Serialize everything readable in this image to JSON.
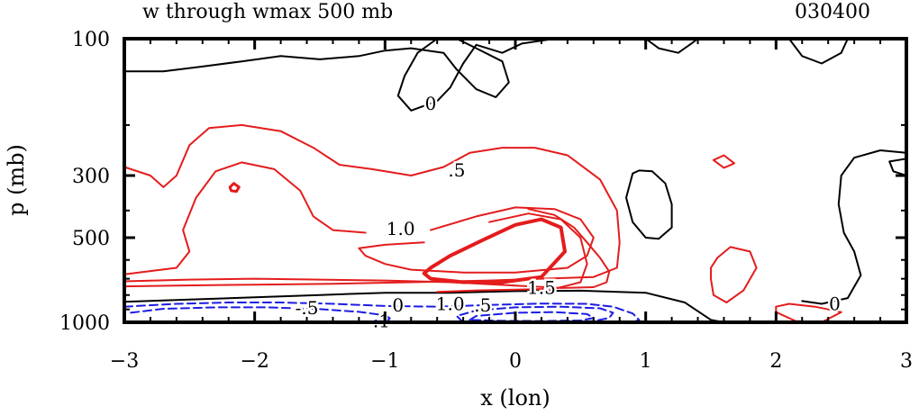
{
  "chart_data": {
    "type": "contour",
    "title": "w through wmax 500 mb",
    "time_label": "030400",
    "xlabel": "x (lon)",
    "ylabel": "p (mb)",
    "xlim": [
      -3,
      3
    ],
    "x_ticks": [
      -3,
      -2,
      -1,
      0,
      1,
      2,
      3
    ],
    "y_ticks": [
      100,
      300,
      500,
      1000
    ],
    "grid": false,
    "contour_labels": [
      {
        "text": "0",
        "x": -0.65,
        "p": 170,
        "color": "#000000"
      },
      {
        "text": ".5",
        "x": -0.45,
        "p": 290,
        "color": "#000000"
      },
      {
        "text": "1.0",
        "x": -0.88,
        "p": 470,
        "color": "#000000"
      },
      {
        "text": "1.5",
        "x": 0.2,
        "p": 760,
        "color": "#000000"
      },
      {
        "text": "1.0",
        "x": -0.5,
        "p": 870,
        "color": "#000000"
      },
      {
        "text": ".5",
        "x": -0.25,
        "p": 880,
        "color": "#000000"
      },
      {
        "text": "0",
        "x": -0.9,
        "p": 880,
        "color": "#000000"
      },
      {
        "text": "-.5",
        "x": -1.6,
        "p": 900,
        "color": "#000000"
      },
      {
        "text": "-.1",
        "x": -1.05,
        "p": 1000,
        "color": "#000000"
      },
      {
        "text": "0",
        "x": 2.45,
        "p": 870,
        "color": "#000000"
      }
    ],
    "contours": [
      {
        "level": 0,
        "color": "#000000",
        "dash": false,
        "width": 2,
        "points": [
          [
            -3,
            130
          ],
          [
            -2.7,
            130
          ],
          [
            -2.4,
            125
          ],
          [
            -2.1,
            120
          ],
          [
            -1.8,
            115
          ],
          [
            -1.5,
            118
          ],
          [
            -1.2,
            115
          ],
          [
            -1.0,
            110
          ],
          [
            -0.8,
            108
          ],
          [
            -0.55,
            112
          ],
          [
            -0.45,
            128
          ],
          [
            -0.3,
            150
          ],
          [
            -0.15,
            160
          ],
          [
            -0.05,
            142
          ],
          [
            -0.1,
            120
          ],
          [
            -0.3,
            108
          ],
          [
            -0.45,
            100
          ]
        ]
      },
      {
        "level": 0,
        "color": "#000000",
        "dash": false,
        "width": 2,
        "points": [
          [
            -0.6,
            100
          ],
          [
            -0.75,
            112
          ],
          [
            -0.85,
            135
          ],
          [
            -0.9,
            158
          ],
          [
            -0.8,
            178
          ],
          [
            -0.6,
            165
          ],
          [
            -0.5,
            148
          ],
          [
            -0.4,
            122
          ],
          [
            -0.3,
            105
          ],
          [
            -0.1,
            112
          ],
          [
            0.05,
            104
          ],
          [
            0.3,
            100
          ]
        ]
      },
      {
        "level": 0,
        "color": "#000000",
        "dash": false,
        "width": 2,
        "points": [
          [
            1.0,
            100
          ],
          [
            1.1,
            108
          ],
          [
            1.25,
            112
          ],
          [
            1.35,
            104
          ],
          [
            1.4,
            100
          ]
        ]
      },
      {
        "level": 0,
        "color": "#000000",
        "dash": false,
        "width": 2,
        "points": [
          [
            2.1,
            100
          ],
          [
            2.2,
            115
          ],
          [
            2.35,
            122
          ],
          [
            2.5,
            112
          ],
          [
            2.55,
            100
          ]
        ]
      },
      {
        "level": 0,
        "color": "#000000",
        "dash": false,
        "width": 2,
        "points": [
          [
            0.9,
            295
          ],
          [
            0.85,
            360
          ],
          [
            0.9,
            440
          ],
          [
            1.0,
            500
          ],
          [
            1.1,
            505
          ],
          [
            1.2,
            460
          ],
          [
            1.2,
            380
          ],
          [
            1.15,
            320
          ],
          [
            1.05,
            290
          ],
          [
            0.95,
            288
          ],
          [
            0.9,
            295
          ]
        ]
      },
      {
        "level": 0,
        "color": "#000000",
        "dash": false,
        "width": 2,
        "points": [
          [
            3,
            250
          ],
          [
            2.8,
            245
          ],
          [
            2.6,
            260
          ],
          [
            2.5,
            300
          ],
          [
            2.48,
            380
          ],
          [
            2.52,
            480
          ],
          [
            2.6,
            560
          ],
          [
            2.65,
            680
          ],
          [
            2.55,
            820
          ],
          [
            2.35,
            860
          ],
          [
            2.2,
            840
          ]
        ]
      },
      {
        "level": 0,
        "color": "#000000",
        "dash": false,
        "width": 2,
        "points": [
          [
            3,
            300
          ],
          [
            2.9,
            290
          ],
          [
            2.87,
            268
          ],
          [
            3,
            262
          ]
        ]
      },
      {
        "level": 0,
        "color": "#000000",
        "dash": false,
        "width": 2,
        "points": [
          [
            -3,
            845
          ],
          [
            -2.5,
            830
          ],
          [
            -2.0,
            815
          ],
          [
            -1.5,
            800
          ],
          [
            -1.0,
            785
          ],
          [
            -0.5,
            785
          ],
          [
            0,
            775
          ],
          [
            0.5,
            772
          ],
          [
            1.0,
            785
          ],
          [
            1.3,
            850
          ],
          [
            1.5,
            980
          ],
          [
            1.6,
            1000
          ]
        ]
      },
      {
        "level": 0.5,
        "color": "#e41c1c",
        "dash": false,
        "width": 2,
        "points": [
          [
            -3,
            280
          ],
          [
            -2.8,
            300
          ],
          [
            -2.7,
            330
          ],
          [
            -2.6,
            300
          ],
          [
            -2.5,
            235
          ],
          [
            -2.35,
            205
          ],
          [
            -2.1,
            200
          ],
          [
            -1.8,
            210
          ],
          [
            -1.55,
            240
          ],
          [
            -1.35,
            275
          ],
          [
            -1.1,
            285
          ],
          [
            -0.8,
            300
          ],
          [
            -0.55,
            280
          ],
          [
            -0.35,
            250
          ],
          [
            -0.1,
            240
          ],
          [
            0.15,
            240
          ],
          [
            0.4,
            255
          ],
          [
            0.65,
            310
          ],
          [
            0.78,
            400
          ],
          [
            0.8,
            520
          ],
          [
            0.78,
            640
          ],
          [
            0.6,
            690
          ],
          [
            0.2,
            700
          ],
          [
            -0.2,
            710
          ],
          [
            -0.8,
            720
          ],
          [
            -1.4,
            730
          ],
          [
            -2.0,
            735
          ],
          [
            -2.6,
            740
          ],
          [
            -3,
            745
          ]
        ]
      },
      {
        "level": 1.0,
        "color": "#e41c1c",
        "dash": false,
        "width": 2,
        "points": [
          [
            -3,
            675
          ],
          [
            -2.6,
            640
          ],
          [
            -2.5,
            560
          ],
          [
            -2.55,
            470
          ],
          [
            -2.45,
            360
          ],
          [
            -2.3,
            290
          ],
          [
            -2.1,
            270
          ],
          [
            -1.85,
            285
          ],
          [
            -1.65,
            340
          ],
          [
            -1.55,
            420
          ],
          [
            -1.4,
            470
          ],
          [
            -1.15,
            480
          ]
        ]
      },
      {
        "level": 1.0,
        "color": "#e41c1c",
        "dash": false,
        "width": 2,
        "points": [
          [
            -0.65,
            470
          ],
          [
            -0.3,
            420
          ],
          [
            0,
            390
          ],
          [
            0.3,
            395
          ],
          [
            0.5,
            430
          ],
          [
            0.6,
            500
          ],
          [
            0.55,
            580
          ],
          [
            0.4,
            640
          ],
          [
            0.0,
            665
          ],
          [
            -0.4,
            665
          ],
          [
            -0.8,
            650
          ],
          [
            -1.0,
            620
          ],
          [
            -1.15,
            580
          ],
          [
            -1.2,
            545
          ],
          [
            -1.0,
            530
          ],
          [
            -0.7,
            520
          ]
        ]
      },
      {
        "level": 1.0,
        "color": "#e41c1c",
        "dash": false,
        "width": 2,
        "points": [
          [
            -3,
            715
          ],
          [
            -2.5,
            705
          ],
          [
            -2.0,
            700
          ],
          [
            -1.5,
            705
          ],
          [
            -1.0,
            710
          ],
          [
            -0.5,
            720
          ],
          [
            0,
            740
          ],
          [
            0.35,
            755
          ],
          [
            0.6,
            750
          ],
          [
            0.7,
            720
          ],
          [
            0.72,
            660
          ],
          [
            0.65,
            590
          ],
          [
            0.55,
            520
          ],
          [
            0.45,
            460
          ],
          [
            0.3,
            415
          ],
          [
            0.1,
            395
          ]
        ]
      },
      {
        "level": 1.5,
        "color": "#e41c1c",
        "dash": false,
        "width": 2,
        "points": [
          [
            -0.6,
            780
          ],
          [
            -0.3,
            770
          ],
          [
            0,
            765
          ],
          [
            0.3,
            760
          ],
          [
            0.5,
            720
          ],
          [
            0.55,
            620
          ],
          [
            0.5,
            500
          ],
          [
            0.35,
            430
          ],
          [
            0.1,
            410
          ],
          [
            -0.2,
            440
          ]
        ]
      },
      {
        "level": 2.0,
        "color": "#e41c1c",
        "dash": false,
        "width": 4,
        "points": [
          [
            -0.65,
            640
          ],
          [
            -0.5,
            580
          ],
          [
            -0.25,
            510
          ],
          [
            0,
            450
          ],
          [
            0.2,
            430
          ],
          [
            0.35,
            460
          ],
          [
            0.38,
            560
          ],
          [
            0.2,
            690
          ],
          [
            -0.1,
            720
          ],
          [
            -0.4,
            720
          ],
          [
            -0.65,
            700
          ],
          [
            -0.7,
            670
          ],
          [
            -0.65,
            640
          ]
        ]
      },
      {
        "level": 2.5,
        "color": "#e41c1c",
        "dash": false,
        "width": 3,
        "points": [
          [
            -2.19,
            330
          ],
          [
            -2.16,
            320
          ],
          [
            -2.12,
            330
          ],
          [
            -2.14,
            342
          ],
          [
            -2.18,
            340
          ],
          [
            -2.19,
            330
          ]
        ]
      },
      {
        "level": 0.5,
        "color": "#e41c1c",
        "dash": false,
        "width": 2,
        "points": [
          [
            1.52,
            265
          ],
          [
            1.6,
            255
          ],
          [
            1.68,
            272
          ],
          [
            1.6,
            282
          ],
          [
            1.52,
            265
          ]
        ]
      },
      {
        "level": 0.5,
        "color": "#e41c1c",
        "dash": false,
        "width": 2,
        "points": [
          [
            1.5,
            640
          ],
          [
            1.55,
            590
          ],
          [
            1.65,
            540
          ],
          [
            1.8,
            560
          ],
          [
            1.85,
            640
          ],
          [
            1.75,
            770
          ],
          [
            1.62,
            850
          ],
          [
            1.52,
            800
          ],
          [
            1.5,
            700
          ],
          [
            1.5,
            640
          ]
        ]
      },
      {
        "level": 0.5,
        "color": "#e41c1c",
        "dash": false,
        "width": 2,
        "points": [
          [
            2.0,
            880
          ],
          [
            2.1,
            860
          ],
          [
            2.3,
            880
          ],
          [
            2.5,
            920
          ],
          [
            2.35,
            1000
          ],
          [
            2.15,
            990
          ],
          [
            2.0,
            920
          ],
          [
            2.0,
            880
          ]
        ]
      },
      {
        "level": -0.5,
        "color": "#1c1ce4",
        "dash": true,
        "width": 2,
        "points": [
          [
            -3,
            880
          ],
          [
            -2.6,
            860
          ],
          [
            -2.2,
            850
          ],
          [
            -1.8,
            850
          ],
          [
            -1.4,
            860
          ],
          [
            -1.0,
            875
          ],
          [
            -0.6,
            880
          ],
          [
            -0.2,
            868
          ],
          [
            0.2,
            858
          ],
          [
            0.55,
            860
          ],
          [
            0.75,
            880
          ],
          [
            0.9,
            930
          ],
          [
            0.95,
            980
          ],
          [
            0.9,
            1000
          ]
        ]
      },
      {
        "level": -1.0,
        "color": "#1c1ce4",
        "dash": true,
        "width": 2,
        "points": [
          [
            -2.95,
            925
          ],
          [
            -2.7,
            895
          ],
          [
            -2.3,
            885
          ],
          [
            -1.9,
            885
          ],
          [
            -1.5,
            898
          ],
          [
            -1.2,
            918
          ],
          [
            -1.0,
            945
          ],
          [
            -0.95,
            975
          ],
          [
            -1.2,
            1000
          ]
        ]
      },
      {
        "level": -1.0,
        "color": "#1c1ce4",
        "dash": true,
        "width": 2,
        "points": [
          [
            -0.4,
            1000
          ],
          [
            -0.45,
            950
          ],
          [
            -0.3,
            908
          ],
          [
            0,
            885
          ],
          [
            0.35,
            880
          ],
          [
            0.65,
            892
          ],
          [
            0.75,
            925
          ],
          [
            0.72,
            965
          ],
          [
            0.6,
            990
          ],
          [
            0.3,
            1000
          ]
        ]
      },
      {
        "level": -1.5,
        "color": "#1c1ce4",
        "dash": true,
        "width": 2,
        "points": [
          [
            -0.35,
            980
          ],
          [
            -0.3,
            950
          ],
          [
            0,
            925
          ],
          [
            0.3,
            920
          ],
          [
            0.55,
            935
          ],
          [
            0.6,
            965
          ],
          [
            0.5,
            985
          ],
          [
            0.2,
            990
          ],
          [
            -0.1,
            988
          ],
          [
            -0.35,
            980
          ]
        ]
      }
    ]
  }
}
